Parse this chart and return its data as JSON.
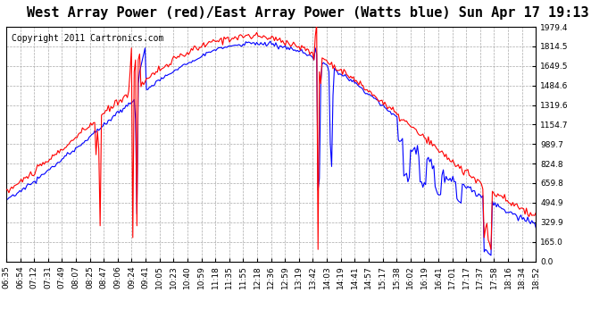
{
  "title": "West Array Power (red)/East Array Power (Watts blue) Sun Apr 17 19:13",
  "copyright": "Copyright 2011 Cartronics.com",
  "ylabel_right": [
    "1979.4",
    "1814.5",
    "1649.5",
    "1484.6",
    "1319.6",
    "1154.7",
    "989.7",
    "824.8",
    "659.8",
    "494.9",
    "329.9",
    "165.0",
    "0.0"
  ],
  "ylim": [
    0,
    1979.4
  ],
  "background_color": "#ffffff",
  "plot_bg_color": "#ffffff",
  "grid_color": "#aaaaaa",
  "red_color": "#ff0000",
  "blue_color": "#0000ff",
  "title_fontsize": 11,
  "copyright_fontsize": 7,
  "tick_fontsize": 6.5,
  "x_labels": [
    "06:35",
    "06:54",
    "07:12",
    "07:31",
    "07:49",
    "08:07",
    "08:25",
    "08:47",
    "09:06",
    "09:24",
    "09:41",
    "10:05",
    "10:23",
    "10:40",
    "10:59",
    "11:18",
    "11:35",
    "11:55",
    "12:18",
    "12:36",
    "12:59",
    "13:19",
    "13:42",
    "14:03",
    "14:19",
    "14:41",
    "14:57",
    "15:17",
    "15:38",
    "16:02",
    "16:19",
    "16:41",
    "17:01",
    "17:17",
    "17:37",
    "17:58",
    "18:16",
    "18:34",
    "18:52"
  ]
}
